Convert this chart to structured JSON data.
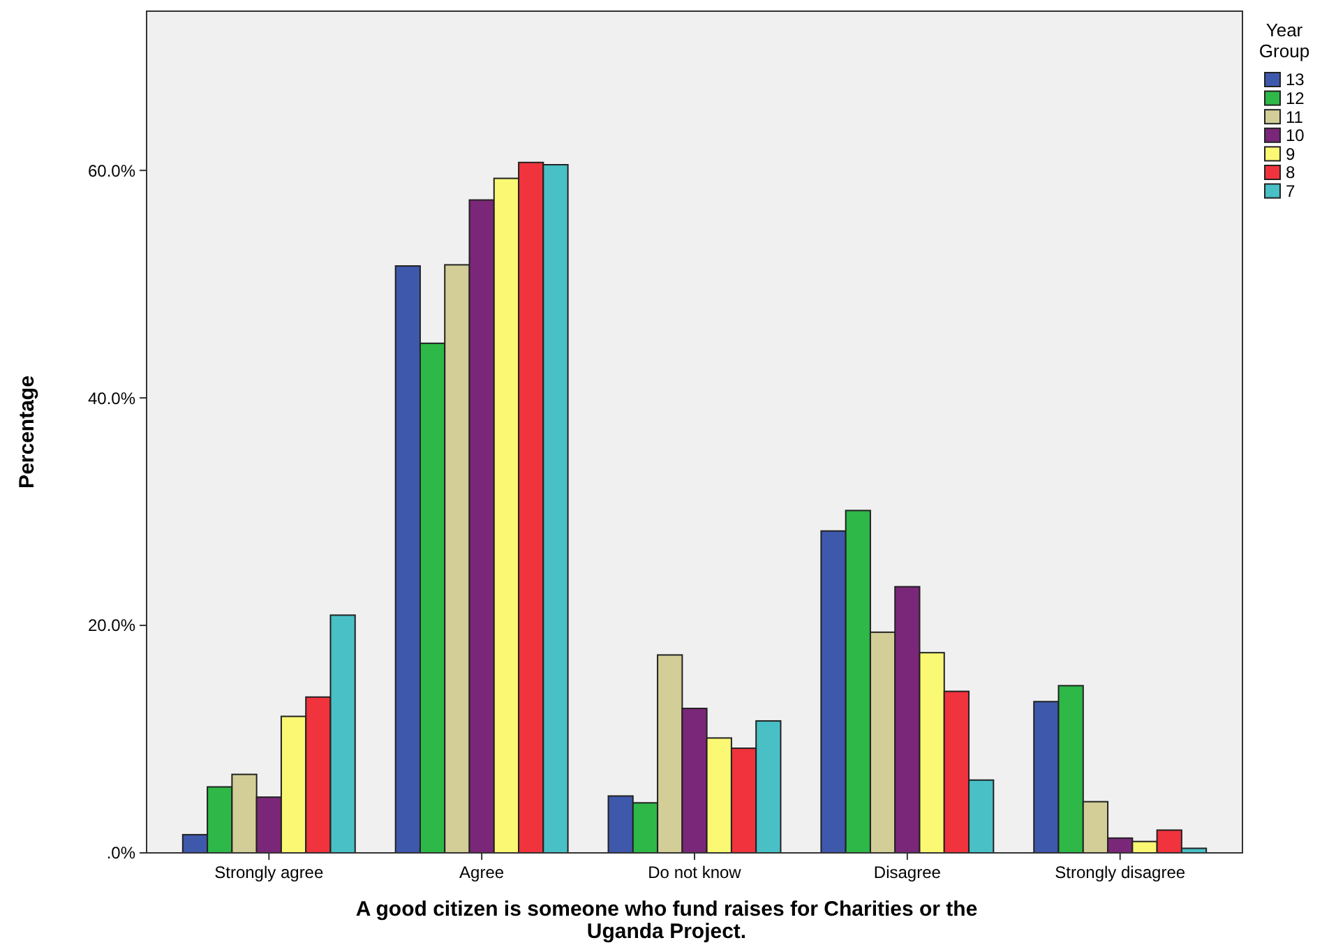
{
  "chart_data": {
    "type": "bar",
    "xlabel": "A good citizen is someone who fund raises for Charities or the Uganda Project.",
    "ylabel": "Percentage",
    "legend_title": "Year Group",
    "legend": "right",
    "categories": [
      "Strongly agree",
      "Agree",
      "Do not know",
      "Disagree",
      "Strongly disagree"
    ],
    "ylim": [
      0,
      74
    ],
    "yticks": [
      {
        "value": 0,
        "label": ".0%"
      },
      {
        "value": 20,
        "label": "20.0%"
      },
      {
        "value": 40,
        "label": "40.0%"
      },
      {
        "value": 60,
        "label": "60.0%"
      }
    ],
    "series": [
      {
        "name": "13",
        "color": "#3e58ac",
        "values": [
          1.6,
          51.6,
          5.0,
          28.3,
          13.3
        ]
      },
      {
        "name": "12",
        "color": "#2eb848",
        "values": [
          5.8,
          44.8,
          4.4,
          30.1,
          14.7
        ]
      },
      {
        "name": "11",
        "color": "#d3ce97",
        "values": [
          6.9,
          51.7,
          17.4,
          19.4,
          4.5
        ]
      },
      {
        "name": "10",
        "color": "#7b2779",
        "values": [
          4.9,
          57.4,
          12.7,
          23.4,
          1.3
        ]
      },
      {
        "name": "9",
        "color": "#fbf873",
        "values": [
          12.0,
          59.3,
          10.1,
          17.6,
          1.0
        ]
      },
      {
        "name": "8",
        "color": "#f0333c",
        "values": [
          13.7,
          60.7,
          9.2,
          14.2,
          2.0
        ]
      },
      {
        "name": "7",
        "color": "#48c0c6",
        "values": [
          20.9,
          60.5,
          11.6,
          6.4,
          0.4
        ]
      }
    ]
  }
}
